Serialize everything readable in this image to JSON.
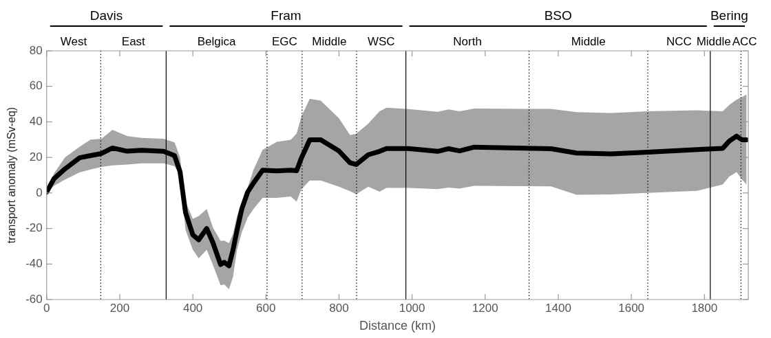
{
  "chart_data": {
    "type": "line",
    "xlabel": "Distance (km)",
    "ylabel": "transport anomaly (mSv-eq)",
    "x": [
      0,
      20,
      50,
      90,
      120,
      150,
      180,
      220,
      260,
      320,
      350,
      365,
      380,
      400,
      416,
      438,
      455,
      476,
      486,
      499,
      510,
      521,
      534,
      550,
      566,
      591,
      630,
      668,
      684,
      697,
      720,
      750,
      800,
      830,
      847,
      880,
      911,
      930,
      990,
      1070,
      1100,
      1130,
      1170,
      1380,
      1450,
      1545,
      1645,
      1780,
      1850,
      1868,
      1888,
      1903,
      1915
    ],
    "series": [
      {
        "color": "#000000",
        "values": [
          0.5,
          8,
          13.5,
          19.8,
          21,
          22.2,
          25.3,
          23.5,
          24,
          23.4,
          21,
          12,
          -11,
          -23.6,
          -26.4,
          -20,
          -28,
          -40.3,
          -39,
          -41,
          -32,
          -21,
          -9,
          0.5,
          5.6,
          12.8,
          12.4,
          12.8,
          12.5,
          19.6,
          29.9,
          29.9,
          23.6,
          17,
          16,
          21.5,
          23.4,
          25,
          25,
          23.4,
          24.9,
          23.7,
          25.8,
          24.9,
          22.5,
          22,
          23,
          24.4,
          25.1,
          29.2,
          32,
          29.9,
          29.9
        ],
        "lower": [
          0,
          4,
          7.5,
          11.5,
          13.2,
          14.6,
          15.5,
          16,
          16.7,
          16.7,
          15,
          10.4,
          -20.8,
          -32,
          -36.8,
          -32,
          -40.5,
          -52,
          -51.5,
          -54.2,
          -47.2,
          -32,
          -22.2,
          -13.9,
          -9,
          -2.8,
          -2.8,
          -2,
          -4.9,
          2.1,
          7,
          7,
          3.5,
          1,
          -0.7,
          3.5,
          0.7,
          2.8,
          2.8,
          2.2,
          3,
          2.5,
          4,
          3.7,
          -1,
          -0.8,
          0,
          1.2,
          4.8,
          9.2,
          11.7,
          7.6,
          4.8
        ],
        "upper": [
          1,
          11,
          20,
          26,
          30,
          30.5,
          35.5,
          32,
          31,
          30.5,
          28.5,
          20,
          -5,
          -14.6,
          -13,
          -9,
          -19.5,
          -27,
          -26.8,
          -28.3,
          -23,
          -13,
          -6,
          3,
          13,
          24.3,
          28.8,
          29.9,
          33.5,
          43,
          53,
          52,
          42,
          32.6,
          33.3,
          39,
          46,
          48,
          47.2,
          45.7,
          47,
          46,
          47.5,
          47.3,
          45.5,
          45,
          46,
          46.5,
          46,
          49.5,
          52.5,
          54,
          55.4
        ]
      }
    ],
    "xlim": [
      0,
      1920
    ],
    "xticks": [
      0,
      200,
      400,
      600,
      800,
      1000,
      1200,
      1400,
      1600,
      1800
    ],
    "ylim": [
      -60,
      80
    ],
    "yticks": [
      -60,
      -40,
      -20,
      0,
      20,
      40,
      60,
      80
    ],
    "grid": false,
    "legend": false,
    "marker": "none",
    "line_style": "solid",
    "ref_lines": [
      {
        "axis": "x",
        "value": 148,
        "line_style": "dotted",
        "color": "#000000"
      },
      {
        "axis": "x",
        "value": 327,
        "line_style": "solid",
        "color": "#000000"
      },
      {
        "axis": "x",
        "value": 603,
        "line_style": "dotted",
        "color": "#000000"
      },
      {
        "axis": "x",
        "value": 699,
        "line_style": "dotted",
        "color": "#000000"
      },
      {
        "axis": "x",
        "value": 848,
        "line_style": "dotted",
        "color": "#000000"
      },
      {
        "axis": "x",
        "value": 983,
        "line_style": "solid",
        "color": "#000000"
      },
      {
        "axis": "x",
        "value": 1320,
        "line_style": "dotted",
        "color": "#000000"
      },
      {
        "axis": "x",
        "value": 1645,
        "line_style": "dotted",
        "color": "#000000"
      },
      {
        "axis": "x",
        "value": 1816,
        "line_style": "solid",
        "color": "#000000"
      },
      {
        "axis": "x",
        "value": 1900,
        "line_style": "dotted",
        "color": "#000000"
      }
    ],
    "annotations": [
      "Davis",
      "Fram",
      "BSO",
      "Bering",
      "West",
      "East",
      "Belgica",
      "EGC",
      "Middle",
      "WSC",
      "North",
      "Middle",
      "NCC",
      "Middle",
      "ACC"
    ]
  }
}
